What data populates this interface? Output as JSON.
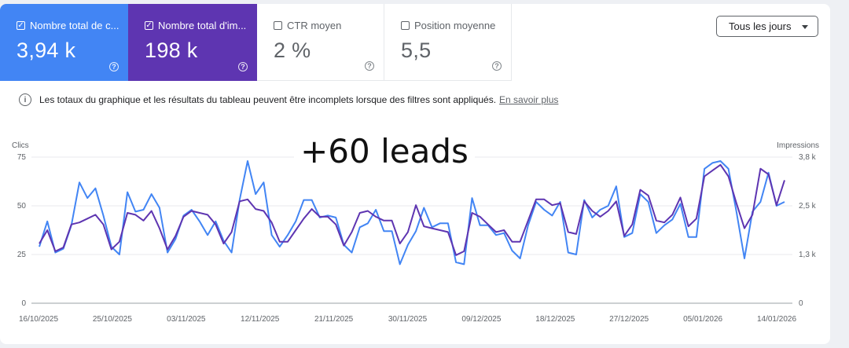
{
  "metrics": [
    {
      "label": "Nombre total de c...",
      "value": "3,94 k",
      "checked": true,
      "color": "#4285f4"
    },
    {
      "label": "Nombre total d'im...",
      "value": "198 k",
      "checked": true,
      "color": "#5e35b1"
    },
    {
      "label": "CTR moyen",
      "value": "2 %",
      "checked": false
    },
    {
      "label": "Position moyenne",
      "value": "5,5",
      "checked": false
    }
  ],
  "help_glyph": "?",
  "check_glyph": "✓",
  "info_glyph": "i",
  "dropdown": {
    "label": "Tous les jours"
  },
  "notice": {
    "text": "Les totaux du graphique et les résultats du tableau peuvent être incomplets lorsque des filtres sont appliqués.",
    "link": "En savoir plus"
  },
  "overlay_text": "+60 leads",
  "chart_data": {
    "type": "line",
    "left_axis": {
      "label": "Clics",
      "ticks": [
        "0",
        "25",
        "50",
        "75"
      ],
      "range": [
        0,
        75
      ]
    },
    "right_axis": {
      "label": "Impressions",
      "ticks": [
        "0",
        "1,3 k",
        "2,5 k",
        "3,8 k"
      ],
      "range": [
        0,
        3800
      ]
    },
    "x_tick_labels": [
      "16/10/2025",
      "25/10/2025",
      "03/11/2025",
      "12/11/2025",
      "21/11/2025",
      "30/11/2025",
      "09/12/2025",
      "18/12/2025",
      "27/12/2025",
      "05/01/2026",
      "14/01/2026"
    ],
    "grid": true,
    "series": [
      {
        "name": "Nombre total de clics",
        "axis": "left",
        "color": "#4285f4",
        "values": [
          29,
          42,
          26,
          28,
          40,
          62,
          54,
          59,
          45,
          29,
          25,
          57,
          47,
          48,
          56,
          49,
          26,
          33,
          45,
          48,
          42,
          35,
          42,
          32,
          26,
          53,
          73,
          56,
          62,
          35,
          29,
          35,
          42,
          53,
          53,
          44,
          45,
          44,
          30,
          26,
          39,
          41,
          48,
          37,
          37,
          20,
          30,
          37,
          49,
          39,
          41,
          41,
          21,
          20,
          54,
          40,
          40,
          35,
          36,
          27,
          23,
          40,
          52,
          48,
          45,
          52,
          26,
          25,
          53,
          44,
          48,
          50,
          60,
          34,
          36,
          56,
          52,
          36,
          40,
          43,
          51,
          34,
          34,
          69,
          72,
          73,
          69,
          47,
          23,
          47,
          52,
          67,
          50,
          52
        ]
      },
      {
        "name": "Nombre total d'impressions",
        "axis": "right",
        "color": "#5e35b1",
        "values": [
          1550,
          1900,
          1350,
          1450,
          2050,
          2100,
          2200,
          2300,
          2050,
          1400,
          1600,
          2350,
          2300,
          2150,
          2400,
          1950,
          1400,
          1750,
          2250,
          2400,
          2350,
          2300,
          2050,
          1550,
          1850,
          2650,
          2700,
          2450,
          2400,
          2100,
          1600,
          1600,
          1900,
          2200,
          2450,
          2250,
          2250,
          2050,
          1500,
          1850,
          2350,
          2400,
          2250,
          2150,
          2150,
          1550,
          1850,
          2550,
          2000,
          1950,
          1900,
          1850,
          1250,
          1350,
          2350,
          2250,
          2050,
          1850,
          1900,
          1600,
          1600,
          2150,
          2700,
          2700,
          2550,
          2600,
          1850,
          1800,
          2650,
          2400,
          2250,
          2400,
          2650,
          1750,
          2050,
          2950,
          2800,
          2150,
          2100,
          2300,
          2750,
          2000,
          2200,
          3300,
          3450,
          3600,
          3300,
          2600,
          1950,
          2300,
          3500,
          3350,
          2550,
          3200
        ]
      }
    ]
  }
}
